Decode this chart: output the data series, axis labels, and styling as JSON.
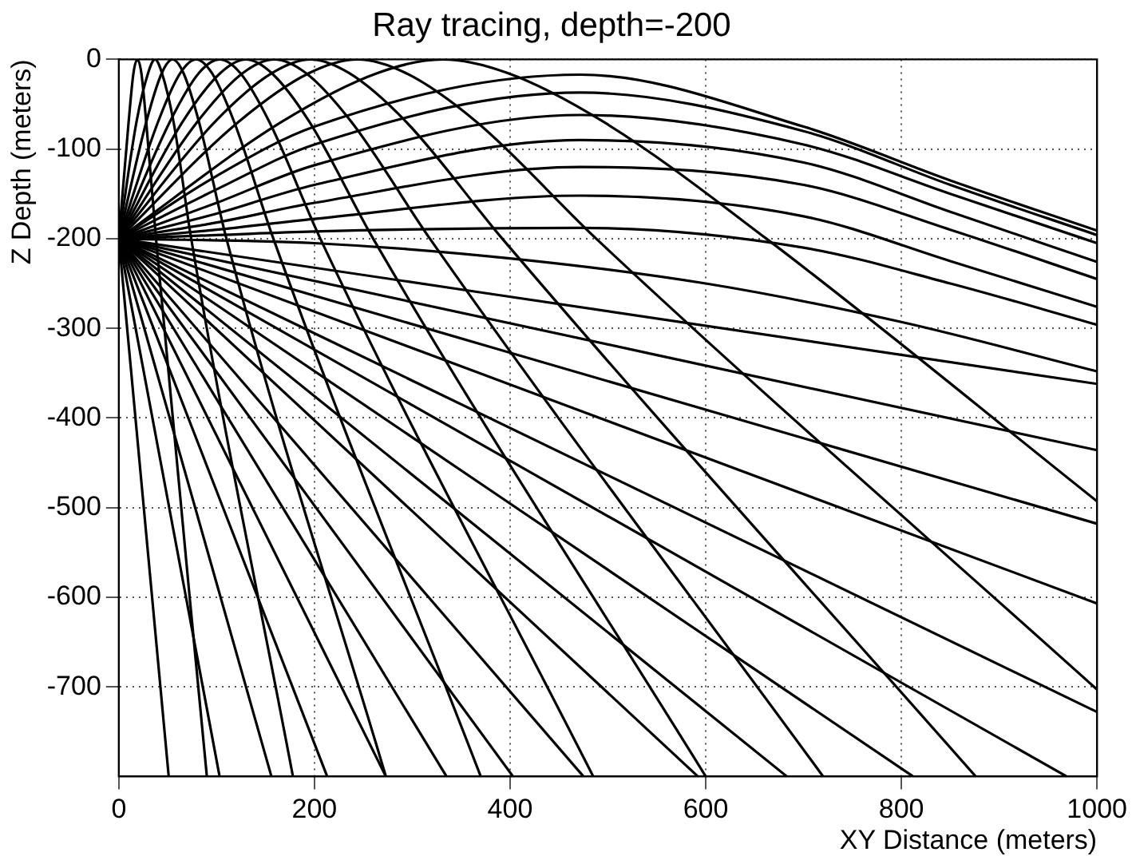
{
  "chart_data": {
    "type": "line",
    "title": "Ray tracing, depth=-200",
    "xlabel": "XY Distance (meters)",
    "ylabel": "Z Depth (meters)",
    "color": "#000000",
    "line_style": "solid",
    "grid": true,
    "xlim": [
      0,
      1000
    ],
    "ylim": [
      -800,
      0
    ],
    "xticks": [
      0,
      200,
      400,
      600,
      800,
      1000
    ],
    "yticks": [
      0,
      -100,
      -200,
      -300,
      -400,
      -500,
      -600,
      -700
    ],
    "series": [
      {
        "x": [
          0,
          10,
          15,
          19,
          23,
          28,
          38,
          90
        ],
        "values": [
          -200,
          -70,
          -15,
          0,
          -15,
          -70,
          -200,
          -800
        ]
      },
      {
        "x": [
          0,
          18,
          30,
          37,
          44,
          56,
          74,
          178
        ],
        "values": [
          -200,
          -70,
          -15,
          0,
          -15,
          -70,
          -200,
          -800
        ]
      },
      {
        "x": [
          0,
          28,
          44,
          55,
          66,
          82,
          110,
          273
        ],
        "values": [
          -200,
          -70,
          -15,
          0,
          -15,
          -70,
          -200,
          -800
        ]
      },
      {
        "x": [
          0,
          40,
          63,
          79,
          95,
          118,
          158,
          370
        ],
        "values": [
          -200,
          -70,
          -15,
          0,
          -15,
          -70,
          -200,
          -800
        ]
      },
      {
        "x": [
          0,
          52,
          82,
          103,
          124,
          154,
          206,
          485
        ],
        "values": [
          -200,
          -70,
          -15,
          0,
          -15,
          -70,
          -200,
          -800
        ]
      },
      {
        "x": [
          0,
          65,
          104,
          130,
          156,
          195,
          260,
          600
        ],
        "values": [
          -200,
          -70,
          -15,
          0,
          -15,
          -70,
          -200,
          -800
        ]
      },
      {
        "x": [
          0,
          80,
          127,
          159,
          191,
          238,
          318,
          720
        ],
        "values": [
          -200,
          -70,
          -15,
          0,
          -15,
          -70,
          -200,
          -800
        ]
      },
      {
        "x": [
          0,
          98,
          157,
          196,
          235,
          294,
          392,
          876
        ],
        "values": [
          -200,
          -70,
          -15,
          0,
          -15,
          -70,
          -200,
          -800
        ]
      },
      {
        "x": [
          0,
          122,
          195,
          244,
          293,
          366,
          488,
          1000
        ],
        "values": [
          -200,
          -70,
          -15,
          0,
          -15,
          -70,
          -200,
          -703
        ]
      },
      {
        "x": [
          0,
          166,
          265,
          331,
          397,
          496,
          662,
          1000
        ],
        "values": [
          -200,
          -70,
          -15,
          0,
          -15,
          -70,
          -200,
          -493
        ]
      },
      {
        "x": [
          0,
          100,
          200,
          472,
          700,
          850,
          1000
        ],
        "values": [
          -200,
          -130,
          -75,
          -17,
          -75,
          -135,
          -191
        ]
      },
      {
        "x": [
          0,
          100,
          200,
          472,
          700,
          850,
          1000
        ],
        "values": [
          -200,
          -145,
          -95,
          -37,
          -80,
          -140,
          -196
        ]
      },
      {
        "x": [
          0,
          100,
          200,
          472,
          700,
          850,
          1000
        ],
        "values": [
          -200,
          -160,
          -118,
          -62,
          -95,
          -150,
          -205
        ]
      },
      {
        "x": [
          0,
          100,
          200,
          472,
          700,
          850,
          1000
        ],
        "values": [
          -200,
          -172,
          -140,
          -90,
          -115,
          -170,
          -226
        ]
      },
      {
        "x": [
          0,
          100,
          200,
          472,
          700,
          850,
          1000
        ],
        "values": [
          -200,
          -182,
          -160,
          -120,
          -140,
          -190,
          -245
        ]
      },
      {
        "x": [
          0,
          100,
          200,
          472,
          700,
          850,
          1000
        ],
        "values": [
          -200,
          -190,
          -178,
          -152,
          -175,
          -225,
          -276
        ]
      },
      {
        "x": [
          0,
          100,
          200,
          472,
          700,
          850,
          1000
        ],
        "values": [
          -200,
          -196,
          -192,
          -188,
          -210,
          -250,
          -296
        ]
      },
      {
        "x": [
          0,
          200,
          400,
          600,
          800,
          1000
        ],
        "values": [
          -200,
          -205,
          -222,
          -250,
          -293,
          -348
        ]
      },
      {
        "x": [
          0,
          1000
        ],
        "values": [
          -200,
          -362
        ]
      },
      {
        "x": [
          0,
          1000
        ],
        "values": [
          -200,
          -436
        ]
      },
      {
        "x": [
          0,
          1000
        ],
        "values": [
          -200,
          -518
        ]
      },
      {
        "x": [
          0,
          1000
        ],
        "values": [
          -200,
          -607
        ]
      },
      {
        "x": [
          0,
          1000
        ],
        "values": [
          -200,
          -728
        ]
      },
      {
        "x": [
          0,
          51
        ],
        "values": [
          -200,
          -800
        ]
      },
      {
        "x": [
          0,
          103
        ],
        "values": [
          -200,
          -800
        ]
      },
      {
        "x": [
          0,
          156
        ],
        "values": [
          -200,
          -800
        ]
      },
      {
        "x": [
          0,
          213
        ],
        "values": [
          -200,
          -800
        ]
      },
      {
        "x": [
          0,
          273
        ],
        "values": [
          -200,
          -800
        ]
      },
      {
        "x": [
          0,
          335
        ],
        "values": [
          -200,
          -800
        ]
      },
      {
        "x": [
          0,
          403
        ],
        "values": [
          -200,
          -800
        ]
      },
      {
        "x": [
          0,
          475
        ],
        "values": [
          -200,
          -800
        ]
      },
      {
        "x": [
          0,
          592
        ],
        "values": [
          -200,
          -800
        ]
      },
      {
        "x": [
          0,
          683
        ],
        "values": [
          -200,
          -800
        ]
      },
      {
        "x": [
          0,
          812
        ],
        "values": [
          -200,
          -800
        ]
      },
      {
        "x": [
          0,
          969
        ],
        "values": [
          -200,
          -800
        ]
      }
    ]
  }
}
